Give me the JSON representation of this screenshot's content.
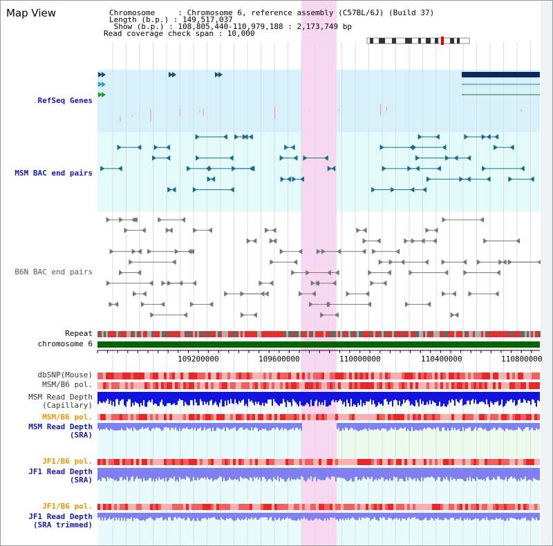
{
  "header": {
    "title": "Map View",
    "chromosome_line": "Chromosome     : Chromosome 6, reference assembly (C57BL/6J) (Build 37)",
    "length_line": "Length (b.p.) : 149,517,037",
    "show_line": " Show (b.p.) : 108,805,440-110,979,188 : 2,173,749 bp",
    "coverage_line": "Read coverage check span : 10,000"
  },
  "tracks": {
    "refseq": "RefSeq Genes",
    "msm_bac": "MSM BAC end pairs",
    "b6n_bac": "B6N BAC end pairs",
    "repeat": "Repeat",
    "chromosome": "chromosome 6",
    "dbsnp": "dbSNP(Mouse)",
    "msm_b6_pol": "MSM/B6 pol.",
    "msm_depth_cap_1": "MSM Read Depth",
    "msm_depth_cap_2": "(Capillary)",
    "msm_b6_pol_2": "MSM/B6 pol.",
    "msm_depth_sra_1": "MSM Read Depth",
    "msm_depth_sra_2": "(SRA)",
    "jf1_pol": "JF1/B6 pol.",
    "jf1_depth_sra_1": "JF1 Read Depth",
    "jf1_depth_sra_2": "(SRA)",
    "jf1_pol_2": "JF1/B6 pol.",
    "jf1_depth_trim_1": "JF1 Read Depth",
    "jf1_depth_trim_2": "(SRA trimmed)"
  },
  "axis": {
    "ticks": [
      "109200000",
      "109600000",
      "110000000",
      "110400000",
      "110800000"
    ]
  },
  "colors": {
    "refseq_bg": "#d8f0fa",
    "msm_bg": "#e2fafa",
    "highlight": "#f8d8f0",
    "chromosome_bar": "#006600",
    "depth_blue": "#1414e0",
    "depth_light": "#8080f0",
    "pol_red": "#f03c3c"
  }
}
